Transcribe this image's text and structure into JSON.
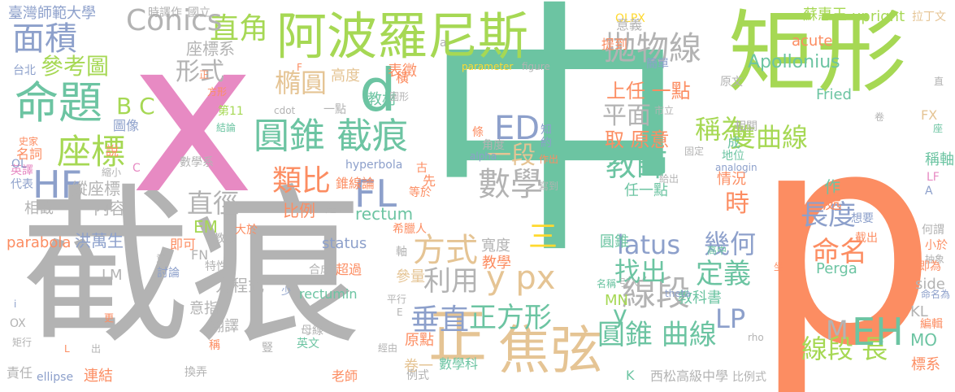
{
  "palette": {
    "green": "#6cc4a2",
    "lime": "#a6d854",
    "pink": "#e78ac3",
    "orange": "#fc8d62",
    "blue": "#8da0cb",
    "gray": "#b3b3b3",
    "tan": "#e5c494",
    "yellow": "#ffd92f"
  },
  "words": [
    {
      "text": "中",
      "c": "green"
    },
    {
      "text": "p",
      "c": "orange"
    },
    {
      "text": "截痕",
      "c": "gray"
    },
    {
      "text": "x",
      "c": "pink"
    },
    {
      "text": "矩形",
      "c": "lime"
    },
    {
      "text": "阿波羅尼斯",
      "c": "lime"
    },
    {
      "text": "圓錐 截痕",
      "c": "green"
    },
    {
      "text": "命題",
      "c": "green"
    },
    {
      "text": "面積",
      "c": "blue"
    },
    {
      "text": "正",
      "c": "tan"
    },
    {
      "text": "焦弦",
      "c": "tan"
    },
    {
      "text": "座標",
      "c": "lime"
    },
    {
      "text": "d",
      "c": "green"
    },
    {
      "text": "拋物線",
      "c": "gray"
    },
    {
      "text": "線段",
      "c": "gray"
    },
    {
      "text": "FL",
      "c": "blue"
    },
    {
      "text": "HF",
      "c": "blue"
    },
    {
      "text": "直角",
      "c": "lime"
    },
    {
      "text": "Conics",
      "c": "gray"
    },
    {
      "text": "參考圖",
      "c": "lime"
    },
    {
      "text": "形式",
      "c": "gray"
    },
    {
      "text": "B C",
      "c": "lime"
    },
    {
      "text": "數學",
      "c": "gray"
    },
    {
      "text": "ED",
      "c": "blue"
    },
    {
      "text": "一段",
      "c": "tan"
    },
    {
      "text": "平面",
      "c": "gray"
    },
    {
      "text": "教師",
      "c": "green"
    },
    {
      "text": "稱為",
      "c": "lime"
    },
    {
      "text": "雙曲線",
      "c": "lime"
    },
    {
      "text": "類比",
      "c": "orange"
    },
    {
      "text": "直徑",
      "c": "gray"
    },
    {
      "text": "方式",
      "c": "tan"
    },
    {
      "text": "三",
      "c": "yellow"
    },
    {
      "text": "y px",
      "c": "tan"
    },
    {
      "text": "垂直",
      "c": "blue"
    },
    {
      "text": "正方形",
      "c": "green"
    },
    {
      "text": "圓錐 曲線",
      "c": "green"
    },
    {
      "text": "線段 長",
      "c": "lime"
    },
    {
      "text": "EH",
      "c": "green"
    },
    {
      "text": "長度",
      "c": "blue"
    },
    {
      "text": "命名",
      "c": "orange"
    },
    {
      "text": "幾何",
      "c": "blue"
    },
    {
      "text": "定義",
      "c": "green"
    },
    {
      "text": "找出",
      "c": "green"
    },
    {
      "text": "latus",
      "c": "blue"
    },
    {
      "text": "時",
      "c": "orange"
    },
    {
      "text": "利用",
      "c": "gray"
    },
    {
      "text": "橢圓",
      "c": "tan"
    },
    {
      "text": "上任 一點",
      "c": "orange"
    },
    {
      "text": "取 原意",
      "c": "orange"
    },
    {
      "text": "LP",
      "c": "blue"
    },
    {
      "text": "M",
      "c": "gray"
    },
    {
      "text": "Apollonius",
      "c": "green"
    },
    {
      "text": "y",
      "c": "green"
    },
    {
      "text": "EM",
      "c": "lime"
    },
    {
      "text": "比例",
      "c": "orange"
    },
    {
      "text": "內容",
      "c": "gray"
    },
    {
      "text": "縱座標",
      "c": "gray"
    },
    {
      "text": "方程式",
      "c": "gray"
    },
    {
      "text": "座標系",
      "c": "gray"
    },
    {
      "text": "臺灣師範大學",
      "c": "blue"
    },
    {
      "text": "upright",
      "c": "lime"
    },
    {
      "text": "蘇惠玉",
      "c": "lime"
    },
    {
      "text": "acute",
      "c": "orange"
    },
    {
      "text": "Fried",
      "c": "green"
    },
    {
      "text": "OLPX",
      "c": "yellow"
    },
    {
      "text": "rectum",
      "c": "green"
    },
    {
      "text": "status",
      "c": "blue"
    },
    {
      "text": "高度",
      "c": "tan"
    },
    {
      "text": "教材",
      "c": "green"
    },
    {
      "text": "寬度",
      "c": "gray"
    },
    {
      "text": "圓錐",
      "c": "green"
    },
    {
      "text": "教學",
      "c": "orange"
    },
    {
      "text": "參量",
      "c": "tan"
    },
    {
      "text": "MN",
      "c": "lime"
    },
    {
      "text": "教科書",
      "c": "green"
    },
    {
      "text": "情況",
      "c": "orange"
    },
    {
      "text": "作",
      "c": "green"
    },
    {
      "text": "處",
      "c": "orange"
    },
    {
      "text": "稱軸",
      "c": "green"
    },
    {
      "text": "Perga",
      "c": "green"
    },
    {
      "text": "side",
      "c": "gray"
    },
    {
      "text": "KL",
      "c": "gray"
    },
    {
      "text": "MO",
      "c": "green"
    },
    {
      "text": "標系",
      "c": "orange"
    },
    {
      "text": "原點",
      "c": "orange"
    },
    {
      "text": "卷一",
      "c": "tan"
    },
    {
      "text": "數學科",
      "c": "green"
    },
    {
      "text": "翻譯",
      "c": "gray"
    },
    {
      "text": "意指",
      "c": "gray"
    },
    {
      "text": "連結",
      "c": "orange"
    },
    {
      "text": "parabola",
      "c": "orange"
    },
    {
      "text": "洪萬生",
      "c": "blue"
    },
    {
      "text": "相截",
      "c": "gray"
    },
    {
      "text": "責任",
      "c": "gray"
    },
    {
      "text": "ellipse",
      "c": "blue"
    },
    {
      "text": "老師",
      "c": "orange"
    },
    {
      "text": "西松高級中學",
      "c": "gray"
    },
    {
      "text": "比例式",
      "c": "gray"
    },
    {
      "text": "K",
      "c": "green"
    },
    {
      "text": "即可",
      "c": "orange"
    },
    {
      "text": "FN",
      "c": "gray"
    },
    {
      "text": "LM",
      "c": "gray"
    },
    {
      "text": "討論",
      "c": "blue"
    },
    {
      "text": "超過",
      "c": "orange"
    },
    {
      "text": "合成",
      "c": "gray"
    },
    {
      "text": "rectumin",
      "c": "green"
    },
    {
      "text": "意義",
      "c": "gray"
    },
    {
      "text": "提到",
      "c": "orange"
    },
    {
      "text": "簡單",
      "c": "blue"
    },
    {
      "text": "parameter",
      "c": "yellow"
    },
    {
      "text": "figure",
      "c": "gray"
    },
    {
      "text": "表徵",
      "c": "orange"
    },
    {
      "text": "橫",
      "c": "orange"
    },
    {
      "text": "hyperbola",
      "c": "blue"
    },
    {
      "text": "錐線論",
      "c": "orange"
    },
    {
      "text": "建立",
      "c": "gray"
    },
    {
      "text": "希臘人",
      "c": "orange"
    },
    {
      "text": "教授",
      "c": "gray"
    },
    {
      "text": "大於",
      "c": "orange"
    },
    {
      "text": "數學系",
      "c": "gray"
    },
    {
      "text": "圖像",
      "c": "blue"
    },
    {
      "text": "名詞",
      "c": "orange"
    },
    {
      "text": "說",
      "c": "orange"
    },
    {
      "text": "英譯",
      "c": "pink"
    },
    {
      "text": "代表",
      "c": "blue"
    },
    {
      "text": "台北",
      "c": "blue"
    },
    {
      "text": "時譯作",
      "c": "gray"
    },
    {
      "text": "國立",
      "c": "gray"
    },
    {
      "text": "拉丁文",
      "c": "tan"
    },
    {
      "text": "原文",
      "c": "gray"
    },
    {
      "text": "相關",
      "c": "gray"
    },
    {
      "text": "地位",
      "c": "green"
    },
    {
      "text": "想要",
      "c": "blue"
    },
    {
      "text": "截出",
      "c": "orange"
    },
    {
      "text": "何謂",
      "c": "gray"
    },
    {
      "text": "小於",
      "c": "orange"
    },
    {
      "text": "抽象",
      "c": "gray"
    },
    {
      "text": "即為",
      "c": "orange"
    },
    {
      "text": "命名為",
      "c": "blue"
    },
    {
      "text": "編輯",
      "c": "orange"
    },
    {
      "text": "FX",
      "c": "tan"
    },
    {
      "text": "LF",
      "c": "pink"
    },
    {
      "text": "Α",
      "c": "blue"
    },
    {
      "text": "座",
      "c": "green"
    },
    {
      "text": "直",
      "c": "gray"
    },
    {
      "text": "卷",
      "c": "gray"
    },
    {
      "text": "rho",
      "c": "gray"
    },
    {
      "text": "theta",
      "c": "blue"
    },
    {
      "text": "高中",
      "c": "green"
    },
    {
      "text": "引入",
      "c": "gray"
    },
    {
      "text": "坐",
      "c": "orange"
    },
    {
      "text": "名稱",
      "c": "green"
    },
    {
      "text": "任一點",
      "c": "green"
    },
    {
      "text": "給出",
      "c": "gray"
    },
    {
      "text": "固定",
      "c": "gray"
    },
    {
      "text": "市立",
      "c": "gray"
    },
    {
      "text": "成",
      "c": "green"
    },
    {
      "text": "analogin",
      "c": "blue"
    },
    {
      "text": "作出",
      "c": "orange"
    },
    {
      "text": "寫到",
      "c": "gray"
    },
    {
      "text": "角度",
      "c": "gray"
    },
    {
      "text": "alpha",
      "c": "blue"
    },
    {
      "text": "條",
      "c": "orange"
    },
    {
      "text": "知",
      "c": "blue"
    },
    {
      "text": "約",
      "c": "blue"
    },
    {
      "text": "等於",
      "c": "orange"
    },
    {
      "text": "先",
      "c": "orange"
    },
    {
      "text": "古",
      "c": "orange"
    },
    {
      "text": "cdot",
      "c": "gray"
    },
    {
      "text": "一點",
      "c": "gray"
    },
    {
      "text": "第11",
      "c": "lime"
    },
    {
      "text": "結論",
      "c": "green"
    },
    {
      "text": "圖形",
      "c": "gray"
    },
    {
      "text": "特性",
      "c": "gray"
    },
    {
      "text": "母線",
      "c": "gray"
    },
    {
      "text": "英文",
      "c": "green"
    },
    {
      "text": "例式",
      "c": "gray"
    },
    {
      "text": "經由",
      "c": "gray"
    },
    {
      "text": "平行",
      "c": "gray"
    },
    {
      "text": "軸",
      "c": "gray"
    },
    {
      "text": "少",
      "c": "blue"
    },
    {
      "text": "豎",
      "c": "gray"
    },
    {
      "text": "稱",
      "c": "orange"
    },
    {
      "text": "換弄",
      "c": "gray"
    },
    {
      "text": "更",
      "c": "orange"
    },
    {
      "text": "出",
      "c": "gray"
    },
    {
      "text": "L",
      "c": "orange"
    },
    {
      "text": "E",
      "c": "gray"
    },
    {
      "text": "F",
      "c": "orange"
    },
    {
      "text": "a",
      "c": "gray"
    },
    {
      "text": "正",
      "c": "orange"
    },
    {
      "text": "方形",
      "c": "orange"
    },
    {
      "text": "縮小",
      "c": "gray"
    },
    {
      "text": "C",
      "c": "pink"
    },
    {
      "text": "OL",
      "c": "blue"
    },
    {
      "text": "史家",
      "c": "orange"
    },
    {
      "text": "OX",
      "c": "gray"
    },
    {
      "text": "矩行",
      "c": "gray"
    },
    {
      "text": "i",
      "c": "blue"
    },
    {
      "text": "意",
      "c": "gray"
    }
  ]
}
